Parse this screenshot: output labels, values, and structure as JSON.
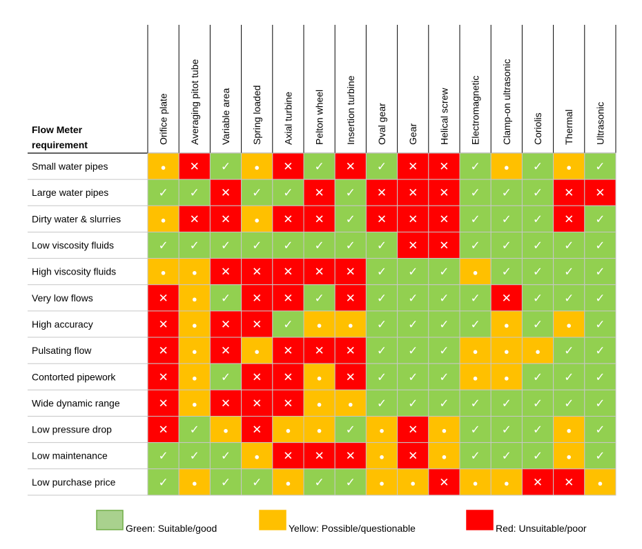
{
  "chart_data": {
    "type": "table",
    "title": "",
    "row_header": "Flow Meter requirement",
    "row_header_lines": [
      "Flow Meter",
      "requirement"
    ],
    "columns": [
      "Orifice plate",
      "Averaging pitot tube",
      "Variable area",
      "Spring loaded",
      "Axial turbine",
      "Pelton wheel",
      "Insertion turbine",
      "Oval gear",
      "Gear",
      "Helical screw",
      "Electromagnetic",
      "Clamp-on ultrasonic",
      "Coriolis",
      "Thermal",
      "Ultrasonic"
    ],
    "rows": [
      {
        "label": "Small water pipes",
        "values": [
          "Y",
          "R",
          "G",
          "Y",
          "R",
          "G",
          "R",
          "G",
          "R",
          "R",
          "G",
          "Y",
          "G",
          "Y",
          "G"
        ]
      },
      {
        "label": "Large water pipes",
        "values": [
          "G",
          "G",
          "R",
          "G",
          "G",
          "R",
          "G",
          "R",
          "R",
          "R",
          "G",
          "G",
          "G",
          "R",
          "R"
        ]
      },
      {
        "label": "Dirty water & slurries",
        "values": [
          "Y",
          "R",
          "R",
          "Y",
          "R",
          "R",
          "G",
          "R",
          "R",
          "R",
          "G",
          "G",
          "G",
          "R",
          "G"
        ]
      },
      {
        "label": "Low viscosity fluids",
        "values": [
          "G",
          "G",
          "G",
          "G",
          "G",
          "G",
          "G",
          "G",
          "R",
          "R",
          "G",
          "G",
          "G",
          "G",
          "G"
        ]
      },
      {
        "label": "High viscosity fluids",
        "values": [
          "Y",
          "Y",
          "R",
          "R",
          "R",
          "R",
          "R",
          "G",
          "G",
          "G",
          "Y",
          "G",
          "G",
          "G",
          "G"
        ]
      },
      {
        "label": "Very low flows",
        "values": [
          "R",
          "Y",
          "G",
          "R",
          "R",
          "G",
          "R",
          "G",
          "G",
          "G",
          "G",
          "R",
          "G",
          "G",
          "G"
        ]
      },
      {
        "label": "High accuracy",
        "values": [
          "R",
          "Y",
          "R",
          "R",
          "G",
          "Y",
          "Y",
          "G",
          "G",
          "G",
          "G",
          "Y",
          "G",
          "Y",
          "G"
        ]
      },
      {
        "label": "Pulsating flow",
        "values": [
          "R",
          "Y",
          "R",
          "Y",
          "R",
          "R",
          "R",
          "G",
          "G",
          "G",
          "Y",
          "Y",
          "Y",
          "G",
          "G"
        ]
      },
      {
        "label": "Contorted pipework",
        "values": [
          "R",
          "Y",
          "G",
          "R",
          "R",
          "Y",
          "R",
          "G",
          "G",
          "G",
          "Y",
          "Y",
          "G",
          "G",
          "G"
        ]
      },
      {
        "label": "Wide dynamic range",
        "values": [
          "R",
          "Y",
          "R",
          "R",
          "R",
          "Y",
          "Y",
          "G",
          "G",
          "G",
          "G",
          "G",
          "G",
          "G",
          "G"
        ]
      },
      {
        "label": "Low pressure drop",
        "values": [
          "R",
          "G",
          "Y",
          "R",
          "Y",
          "Y",
          "G",
          "Y",
          "R",
          "Y",
          "G",
          "G",
          "G",
          "Y",
          "G"
        ]
      },
      {
        "label": "Low maintenance",
        "values": [
          "G",
          "G",
          "G",
          "Y",
          "R",
          "R",
          "R",
          "Y",
          "R",
          "Y",
          "G",
          "G",
          "G",
          "Y",
          "G"
        ]
      },
      {
        "label": "Low purchase price",
        "values": [
          "G",
          "Y",
          "G",
          "G",
          "Y",
          "G",
          "G",
          "Y",
          "Y",
          "R",
          "Y",
          "Y",
          "R",
          "R",
          "Y"
        ]
      }
    ],
    "legend": [
      {
        "code": "G",
        "label": "Green: Suitable/good",
        "color": "#92d050",
        "swatch_color": "#a9d18e",
        "symbol": "✓"
      },
      {
        "code": "Y",
        "label": "Yellow: Possible/questionable",
        "color": "#ffc000",
        "swatch_color": "#ffc000",
        "symbol": "●"
      },
      {
        "code": "R",
        "label": "Red: Unsuitable/poor",
        "color": "#ff0000",
        "swatch_color": "#ff0000",
        "symbol": "✕"
      }
    ],
    "legend_placement": "bottom",
    "grid": true
  }
}
